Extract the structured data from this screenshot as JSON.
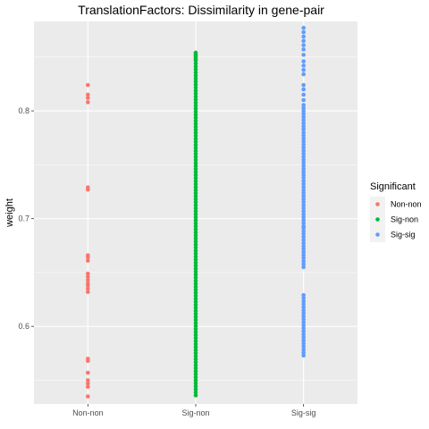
{
  "chart_data": {
    "type": "scatter",
    "title": "TranslationFactors: Dissimilarity in gene-pair",
    "xlabel": "",
    "ylabel": "weight",
    "categories": [
      "Non-non",
      "Sig-non",
      "Sig-sig"
    ],
    "ylim": [
      0.528,
      0.883
    ],
    "yticks": [
      0.6,
      0.7,
      0.8
    ],
    "ytick_labels": [
      "0.6",
      "0.7",
      "0.8"
    ],
    "grid": true,
    "legend": {
      "title": "Significant",
      "position": "right"
    },
    "series": [
      {
        "name": "Non-non",
        "category": "Non-non",
        "color": "#F8766D",
        "values": [
          0.824,
          0.815,
          0.812,
          0.808,
          0.729,
          0.727,
          0.666,
          0.664,
          0.661,
          0.649,
          0.646,
          0.643,
          0.64,
          0.638,
          0.635,
          0.632,
          0.57,
          0.568,
          0.557,
          0.55,
          0.547,
          0.544,
          0.535
        ]
      },
      {
        "name": "Sig-non",
        "category": "Sig-non",
        "color": "#00BA38",
        "range": [
          0.536,
          0.854
        ],
        "step": 0.0028,
        "values": [
          0.854,
          0.851,
          0.848
        ]
      },
      {
        "name": "Sig-sig",
        "category": "Sig-sig",
        "color": "#619CFF",
        "ranges": [
          [
            0.783,
            0.807
          ],
          [
            0.693,
            0.781
          ],
          [
            0.655,
            0.692
          ],
          [
            0.573,
            0.631
          ]
        ],
        "step": 0.0028,
        "values": [
          0.877,
          0.873,
          0.869,
          0.865,
          0.861,
          0.857,
          0.852,
          0.846,
          0.842,
          0.838,
          0.834,
          0.824,
          0.82,
          0.815,
          0.81
        ]
      }
    ]
  }
}
